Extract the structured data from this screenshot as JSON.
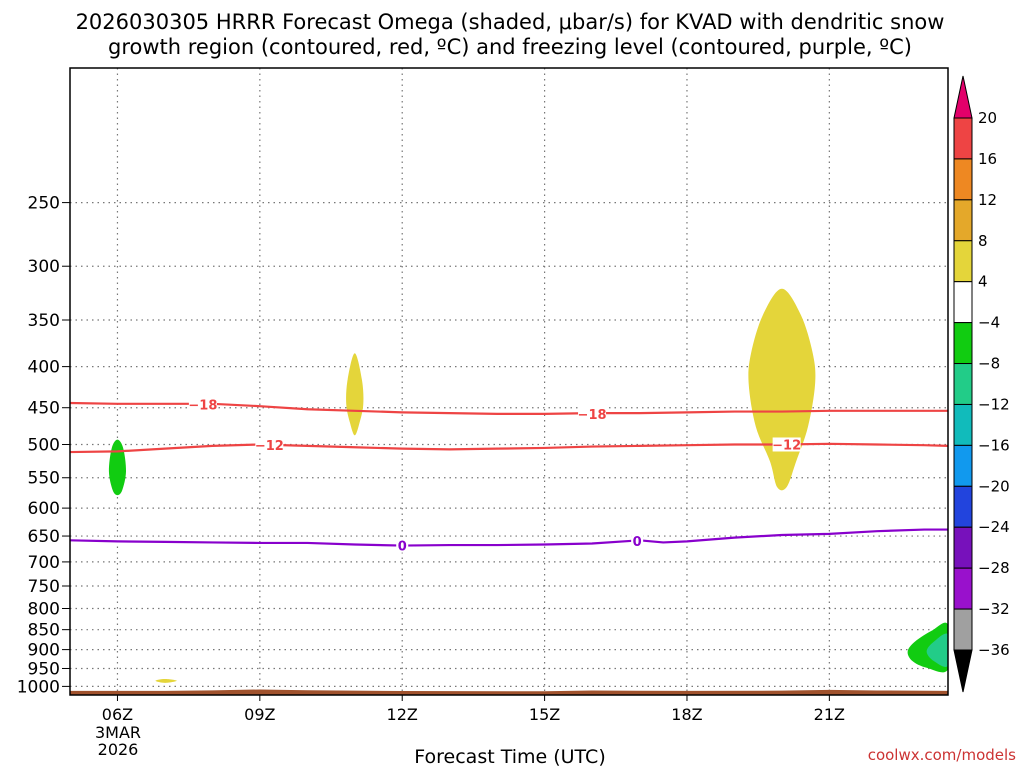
{
  "title_line1": "2026030305 HRRR Forecast Omega (shaded, μbar/s) for KVAD with dendritic snow",
  "title_line2": "growth region (contoured, red, ºC) and freezing level (contoured, purple, ºC)",
  "credit": "coolwx.com/models",
  "chart_data": {
    "type": "time-height contour",
    "xlabel": "Forecast Time (UTC)",
    "ylabel": "",
    "x_range_hours": [
      5,
      23.5
    ],
    "y_range_hpa": [
      170,
      1025
    ],
    "y_axis_scale": "log-pressure",
    "grid": true,
    "y_ticks": [
      250,
      300,
      350,
      400,
      450,
      500,
      550,
      600,
      650,
      700,
      750,
      800,
      850,
      900,
      950,
      1000
    ],
    "y_tick_labels": [
      "250",
      "300",
      "350",
      "400",
      "450",
      "500",
      "550",
      "600",
      "650",
      "700",
      "750",
      "800",
      "850",
      "900",
      "950",
      "1000"
    ],
    "x_ticks_hours": [
      6,
      9,
      12,
      15,
      18,
      21
    ],
    "x_tick_labels": [
      "06Z",
      "09Z",
      "12Z",
      "15Z",
      "18Z",
      "21Z"
    ],
    "date_line1": "3MAR",
    "date_line2": "2026",
    "surface_color": "#a0522d",
    "surface_pressure_hpa": 1010,
    "isotherm_color": "#ee4444",
    "freezing_color": "#8800cc",
    "contours": [
      {
        "name": "minus18",
        "label": "−18",
        "color": "#ee4444",
        "points": [
          [
            5,
            444
          ],
          [
            6,
            445
          ],
          [
            7,
            445
          ],
          [
            8,
            445
          ],
          [
            9,
            448
          ],
          [
            10,
            452
          ],
          [
            11,
            454
          ],
          [
            12,
            456
          ],
          [
            13,
            457
          ],
          [
            14,
            458
          ],
          [
            15,
            458
          ],
          [
            16,
            457
          ],
          [
            17,
            457
          ],
          [
            18,
            456
          ],
          [
            19,
            455
          ],
          [
            20,
            455
          ],
          [
            21,
            454
          ],
          [
            22,
            454
          ],
          [
            23,
            454
          ],
          [
            23.5,
            454
          ]
        ],
        "label_at": [
          [
            7.8,
            446
          ],
          [
            16,
            458
          ]
        ]
      },
      {
        "name": "minus12",
        "label": "−12",
        "color": "#ee4444",
        "points": [
          [
            5,
            511
          ],
          [
            6,
            510
          ],
          [
            7,
            506
          ],
          [
            8,
            502
          ],
          [
            9,
            500
          ],
          [
            10,
            502
          ],
          [
            11,
            504
          ],
          [
            12,
            506
          ],
          [
            13,
            507
          ],
          [
            14,
            506
          ],
          [
            15,
            505
          ],
          [
            16,
            503
          ],
          [
            17,
            502
          ],
          [
            18,
            501
          ],
          [
            19,
            500
          ],
          [
            20,
            500
          ],
          [
            21,
            499
          ],
          [
            22,
            500
          ],
          [
            23,
            501
          ],
          [
            23.5,
            502
          ]
        ],
        "label_at": [
          [
            9.2,
            501
          ],
          [
            20.1,
            500
          ]
        ]
      },
      {
        "name": "zero",
        "label": "0",
        "color": "#8800cc",
        "points": [
          [
            5,
            658
          ],
          [
            6,
            660
          ],
          [
            7,
            661
          ],
          [
            8,
            662
          ],
          [
            9,
            663
          ],
          [
            10,
            663
          ],
          [
            11,
            666
          ],
          [
            12,
            668
          ],
          [
            13,
            667
          ],
          [
            14,
            667
          ],
          [
            15,
            666
          ],
          [
            16,
            664
          ],
          [
            17,
            658
          ],
          [
            17.5,
            662
          ],
          [
            18,
            660
          ],
          [
            19,
            653
          ],
          [
            20,
            648
          ],
          [
            21,
            646
          ],
          [
            22,
            641
          ],
          [
            23,
            638
          ],
          [
            23.5,
            638
          ]
        ],
        "label_at": [
          [
            12,
            668
          ],
          [
            16.95,
            659
          ]
        ]
      }
    ],
    "shaded_regions": [
      {
        "name": "omega-pos-18z",
        "value_range": [
          4,
          8
        ],
        "color": "#e4d53a",
        "polygon": [
          [
            20,
            320
          ],
          [
            20.4,
            345
          ],
          [
            20.65,
            385
          ],
          [
            20.7,
            420
          ],
          [
            20.55,
            475
          ],
          [
            20.3,
            525
          ],
          [
            20.1,
            565
          ],
          [
            19.9,
            565
          ],
          [
            19.75,
            525
          ],
          [
            19.45,
            475
          ],
          [
            19.3,
            420
          ],
          [
            19.35,
            385
          ],
          [
            19.6,
            345
          ]
        ]
      },
      {
        "name": "omega-pos-11z",
        "value_range": [
          4,
          8
        ],
        "color": "#e4d53a",
        "polygon": [
          [
            11,
            385
          ],
          [
            11.15,
            415
          ],
          [
            11.18,
            445
          ],
          [
            11.1,
            470
          ],
          [
            11,
            487
          ],
          [
            10.9,
            470
          ],
          [
            10.82,
            445
          ],
          [
            10.85,
            415
          ]
        ]
      },
      {
        "name": "omega-pos-07z",
        "value_range": [
          4,
          8
        ],
        "color": "#e4d53a",
        "polygon": [
          [
            6.8,
            984
          ],
          [
            7,
            979
          ],
          [
            7.25,
            984
          ],
          [
            7,
            990
          ]
        ]
      },
      {
        "name": "omega-neg-06z",
        "value_range": [
          -8,
          -4
        ],
        "color": "#11cc11",
        "polygon": [
          [
            6,
            493
          ],
          [
            6.12,
            505
          ],
          [
            6.18,
            540
          ],
          [
            6.1,
            570
          ],
          [
            6,
            578
          ],
          [
            5.9,
            570
          ],
          [
            5.82,
            540
          ],
          [
            5.88,
            505
          ]
        ]
      },
      {
        "name": "omega-neg-23z-outer",
        "value_range": [
          -8,
          -4
        ],
        "color": "#11cc11",
        "polygon": [
          [
            23.5,
            838
          ],
          [
            23.15,
            853
          ],
          [
            22.8,
            880
          ],
          [
            22.65,
            905
          ],
          [
            22.75,
            930
          ],
          [
            23.05,
            948
          ],
          [
            23.5,
            952
          ]
        ]
      },
      {
        "name": "omega-neg-23z-inner",
        "value_range": [
          -12,
          -8
        ],
        "color": "#22cc88",
        "polygon": [
          [
            23.5,
            862
          ],
          [
            23.2,
            880
          ],
          [
            23.05,
            905
          ],
          [
            23.2,
            930
          ],
          [
            23.5,
            942
          ]
        ]
      }
    ],
    "colorbar": {
      "labels": [
        "20",
        "16",
        "12",
        "8",
        "4",
        "−4",
        "−8",
        "−12",
        "−16",
        "−20",
        "−24",
        "−28",
        "−32",
        "−36"
      ],
      "colors": [
        "#e2006a",
        "#ee4444",
        "#ee8822",
        "#e4a82a",
        "#e4d53a",
        "#ffffff",
        "#11cc11",
        "#22cc88",
        "#11bbbb",
        "#1199ee",
        "#2244dd",
        "#7711bb",
        "#9911cc",
        "#a0a0a0",
        "#000000"
      ]
    }
  }
}
